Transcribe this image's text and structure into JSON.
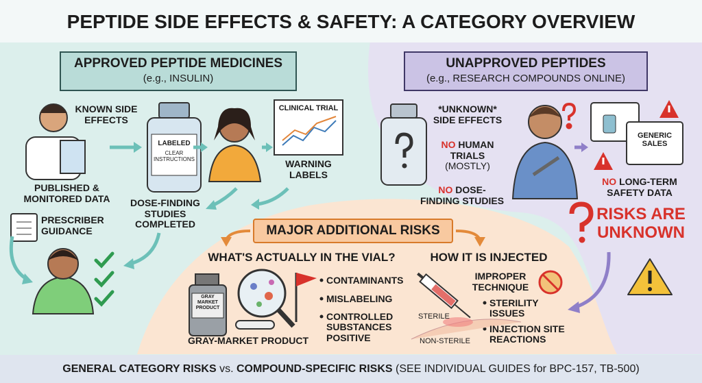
{
  "title": "PEPTIDE SIDE EFFECTS & SAFETY: A CATEGORY OVERVIEW",
  "approved": {
    "banner": {
      "title": "APPROVED PEPTIDE MEDICINES",
      "subtitle": "(e.g., INSULIN)"
    },
    "known_side_effects": "KNOWN SIDE EFFECTS",
    "vial_label": {
      "title": "LABELED",
      "subtitle": "CLEAR INSTRUCTIONS"
    },
    "clinical_trial": "CLINICAL TRIAL",
    "warning_labels": "WARNING LABELS",
    "published_data": "PUBLISHED & MONITORED DATA",
    "dose_finding": "DOSE-FINDING STUDIES COMPLETED",
    "prescriber_guidance": "PRESCRIBER GUIDANCE"
  },
  "unapproved": {
    "banner": {
      "title": "UNAPPROVED PEPTIDES",
      "subtitle": "(e.g., RESEARCH COMPOUNDS ONLINE)"
    },
    "unknown_side_effects": "*UNKNOWN* SIDE EFFECTS",
    "no_human_trials": {
      "no": "NO",
      "text": "HUMAN TRIALS",
      "note": "(MOSTLY)"
    },
    "no_dose_finding": {
      "no": "NO",
      "text": "DOSE-FINDING STUDIES"
    },
    "generic_sales": "GENERIC SALES",
    "no_long_term": {
      "no": "NO",
      "text": "LONG-TERM SAFETY DATA"
    },
    "risks_unknown": "RISKS ARE UNKNOWN"
  },
  "additional_risks": {
    "title": "MAJOR ADDITIONAL RISKS",
    "vial": {
      "heading": "WHAT'S ACTUALLY IN THE VIAL?",
      "bottle_label": "GRAY MARKET PRODUCT",
      "items": [
        "CONTAMINANTS",
        "MISLABELING",
        "CONTROLLED SUBSTANCES POSITIVE"
      ],
      "caption": "GRAY-MARKET PRODUCT"
    },
    "injection": {
      "heading": "HOW IT IS INJECTED",
      "improper": "IMPROPER TECHNIQUE",
      "sterility": "STERILITY ISSUES",
      "site_reactions": "INJECTION SITE REACTIONS",
      "sterile": "STERILE",
      "non_sterile": "NON-STERILE"
    }
  },
  "footer": {
    "general": "GENERAL CATEGORY RISKS",
    "vs": "vs.",
    "specific": "COMPOUND-SPECIFIC RISKS",
    "note": "(SEE INDIVIDUAL GUIDES for BPC-157, TB-500)"
  }
}
